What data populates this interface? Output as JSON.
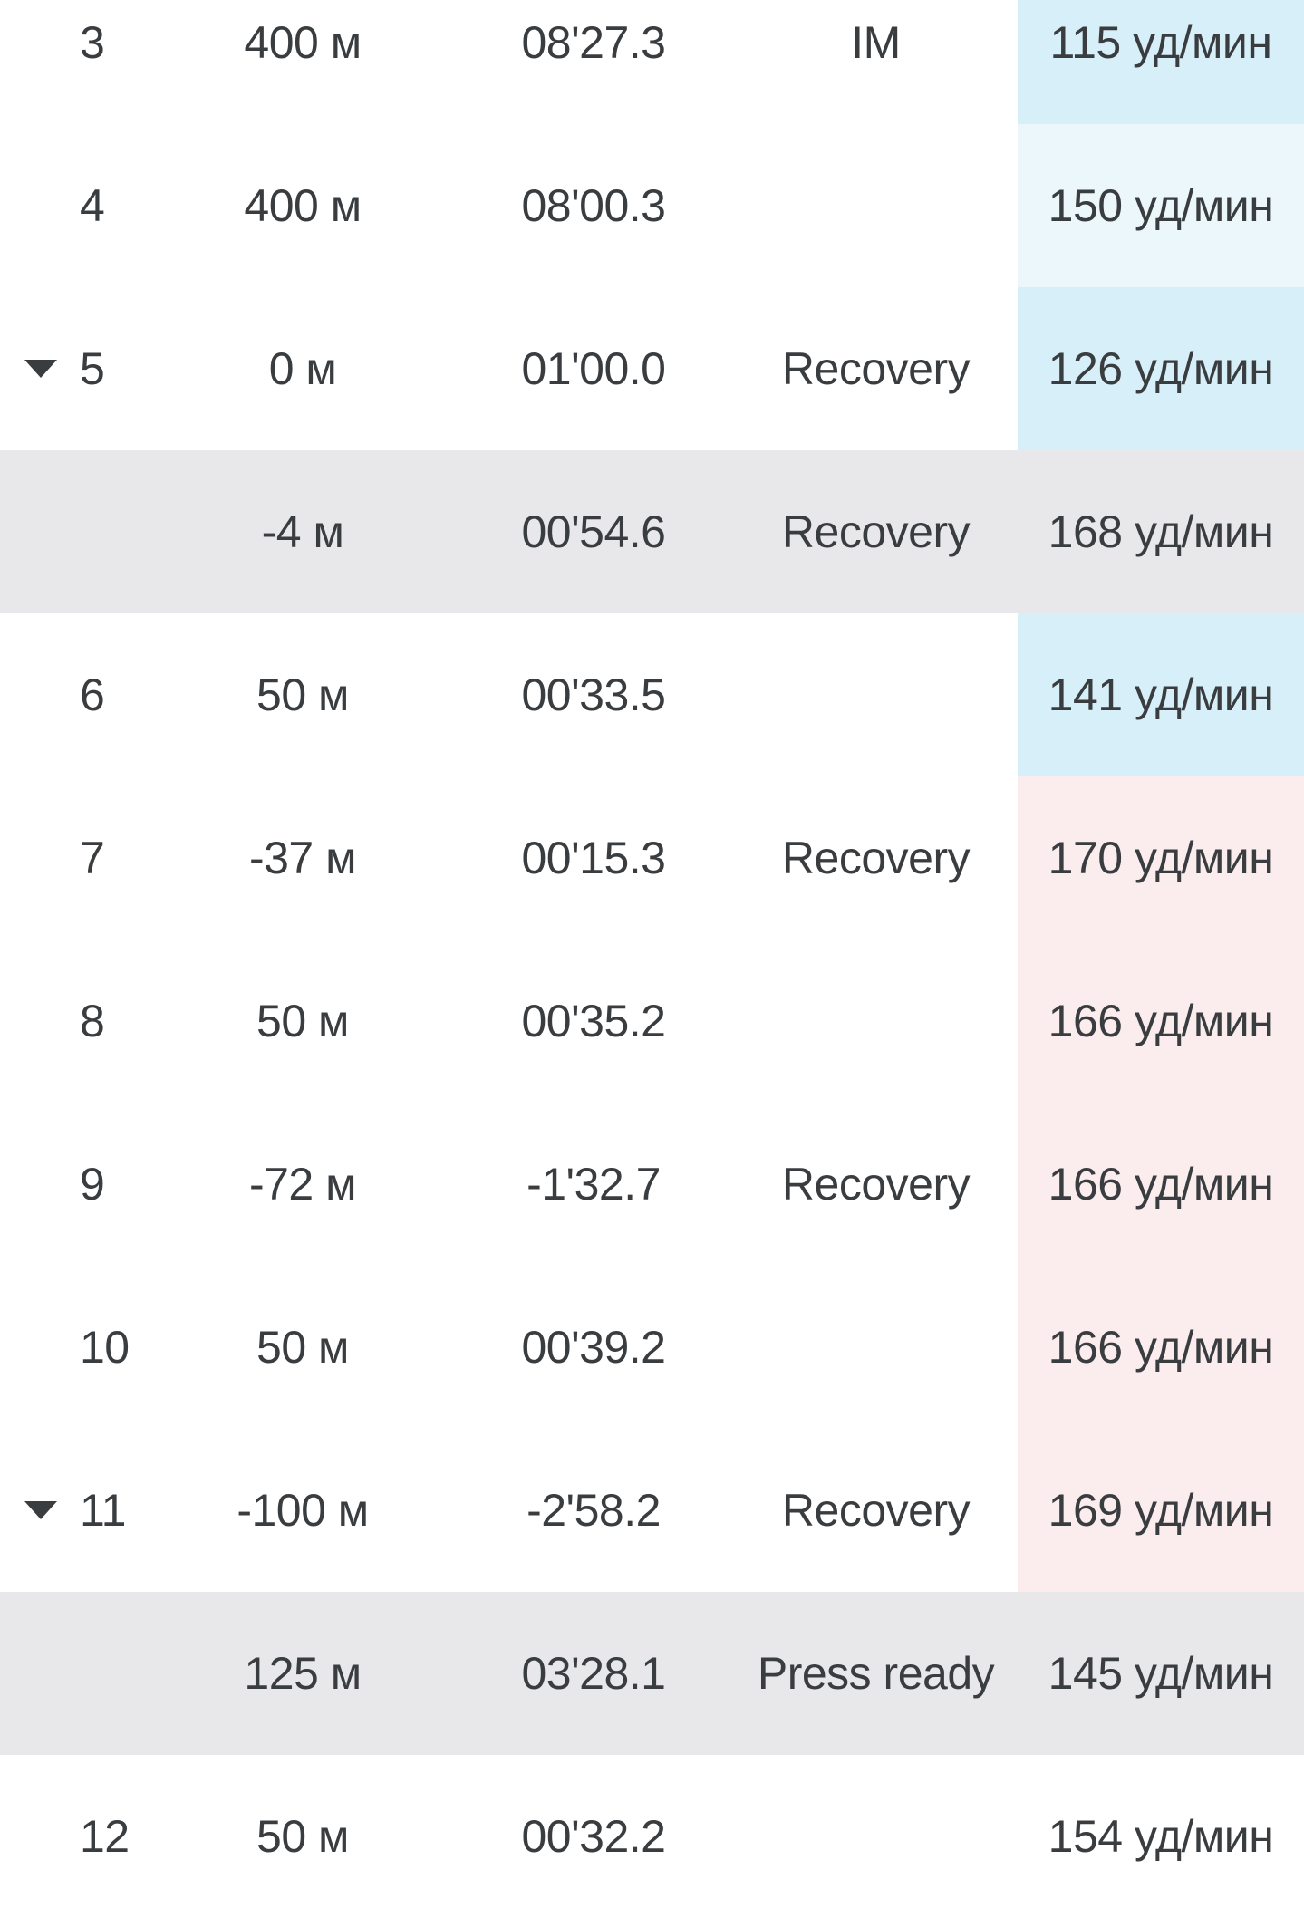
{
  "units": {
    "distance_unit": "м",
    "heart_rate_unit": "уд/мин"
  },
  "colors": {
    "hr_blue": "#d7eff8",
    "hr_pale_blue": "#ecf7fb",
    "hr_pink": "#fbecee",
    "row_gray": "#e8e8ea",
    "row_white": "#ffffff",
    "text": "#3a3d40",
    "triangle": "#3a3d40"
  },
  "lap_table": {
    "rows": [
      {
        "lap": "3",
        "distance": "400 м",
        "time": "08'27.3",
        "type": "IM",
        "heart_rate": "115 уд/мин",
        "hr_bg": "hr_blue",
        "row_bg": "row_white",
        "expander": false
      },
      {
        "lap": "4",
        "distance": "400 м",
        "time": "08'00.3",
        "type": "",
        "heart_rate": "150 уд/мин",
        "hr_bg": "hr_pale_blue",
        "row_bg": "row_white",
        "expander": false
      },
      {
        "lap": "5",
        "distance": "0 м",
        "time": "01'00.0",
        "type": "Recovery",
        "heart_rate": "126 уд/мин",
        "hr_bg": "hr_blue",
        "row_bg": "row_white",
        "expander": true
      },
      {
        "lap": "",
        "distance": "-4 м",
        "time": "00'54.6",
        "type": "Recovery",
        "heart_rate": "168 уд/мин",
        "hr_bg": "none",
        "row_bg": "row_gray",
        "expander": false
      },
      {
        "lap": "6",
        "distance": "50 м",
        "time": "00'33.5",
        "type": "",
        "heart_rate": "141 уд/мин",
        "hr_bg": "hr_blue",
        "row_bg": "row_white",
        "expander": false
      },
      {
        "lap": "7",
        "distance": "-37 м",
        "time": "00'15.3",
        "type": "Recovery",
        "heart_rate": "170 уд/мин",
        "hr_bg": "hr_pink",
        "row_bg": "row_white",
        "expander": false
      },
      {
        "lap": "8",
        "distance": "50 м",
        "time": "00'35.2",
        "type": "",
        "heart_rate": "166 уд/мин",
        "hr_bg": "hr_pink",
        "row_bg": "row_white",
        "expander": false
      },
      {
        "lap": "9",
        "distance": "-72 м",
        "time": "-1'32.7",
        "type": "Recovery",
        "heart_rate": "166 уд/мин",
        "hr_bg": "hr_pink",
        "row_bg": "row_white",
        "expander": false
      },
      {
        "lap": "10",
        "distance": "50 м",
        "time": "00'39.2",
        "type": "",
        "heart_rate": "166 уд/мин",
        "hr_bg": "hr_pink",
        "row_bg": "row_white",
        "expander": false
      },
      {
        "lap": "11",
        "distance": "-100 м",
        "time": "-2'58.2",
        "type": "Recovery",
        "heart_rate": "169 уд/мин",
        "hr_bg": "hr_pink",
        "row_bg": "row_white",
        "expander": true
      },
      {
        "lap": "",
        "distance": "125 м",
        "time": "03'28.1",
        "type": "Press ready",
        "heart_rate": "145 уд/мин",
        "hr_bg": "none",
        "row_bg": "row_gray",
        "expander": false
      },
      {
        "lap": "12",
        "distance": "50 м",
        "time": "00'32.2",
        "type": "",
        "heart_rate": "154 уд/мин",
        "hr_bg": "none",
        "row_bg": "row_white",
        "expander": false
      }
    ]
  }
}
